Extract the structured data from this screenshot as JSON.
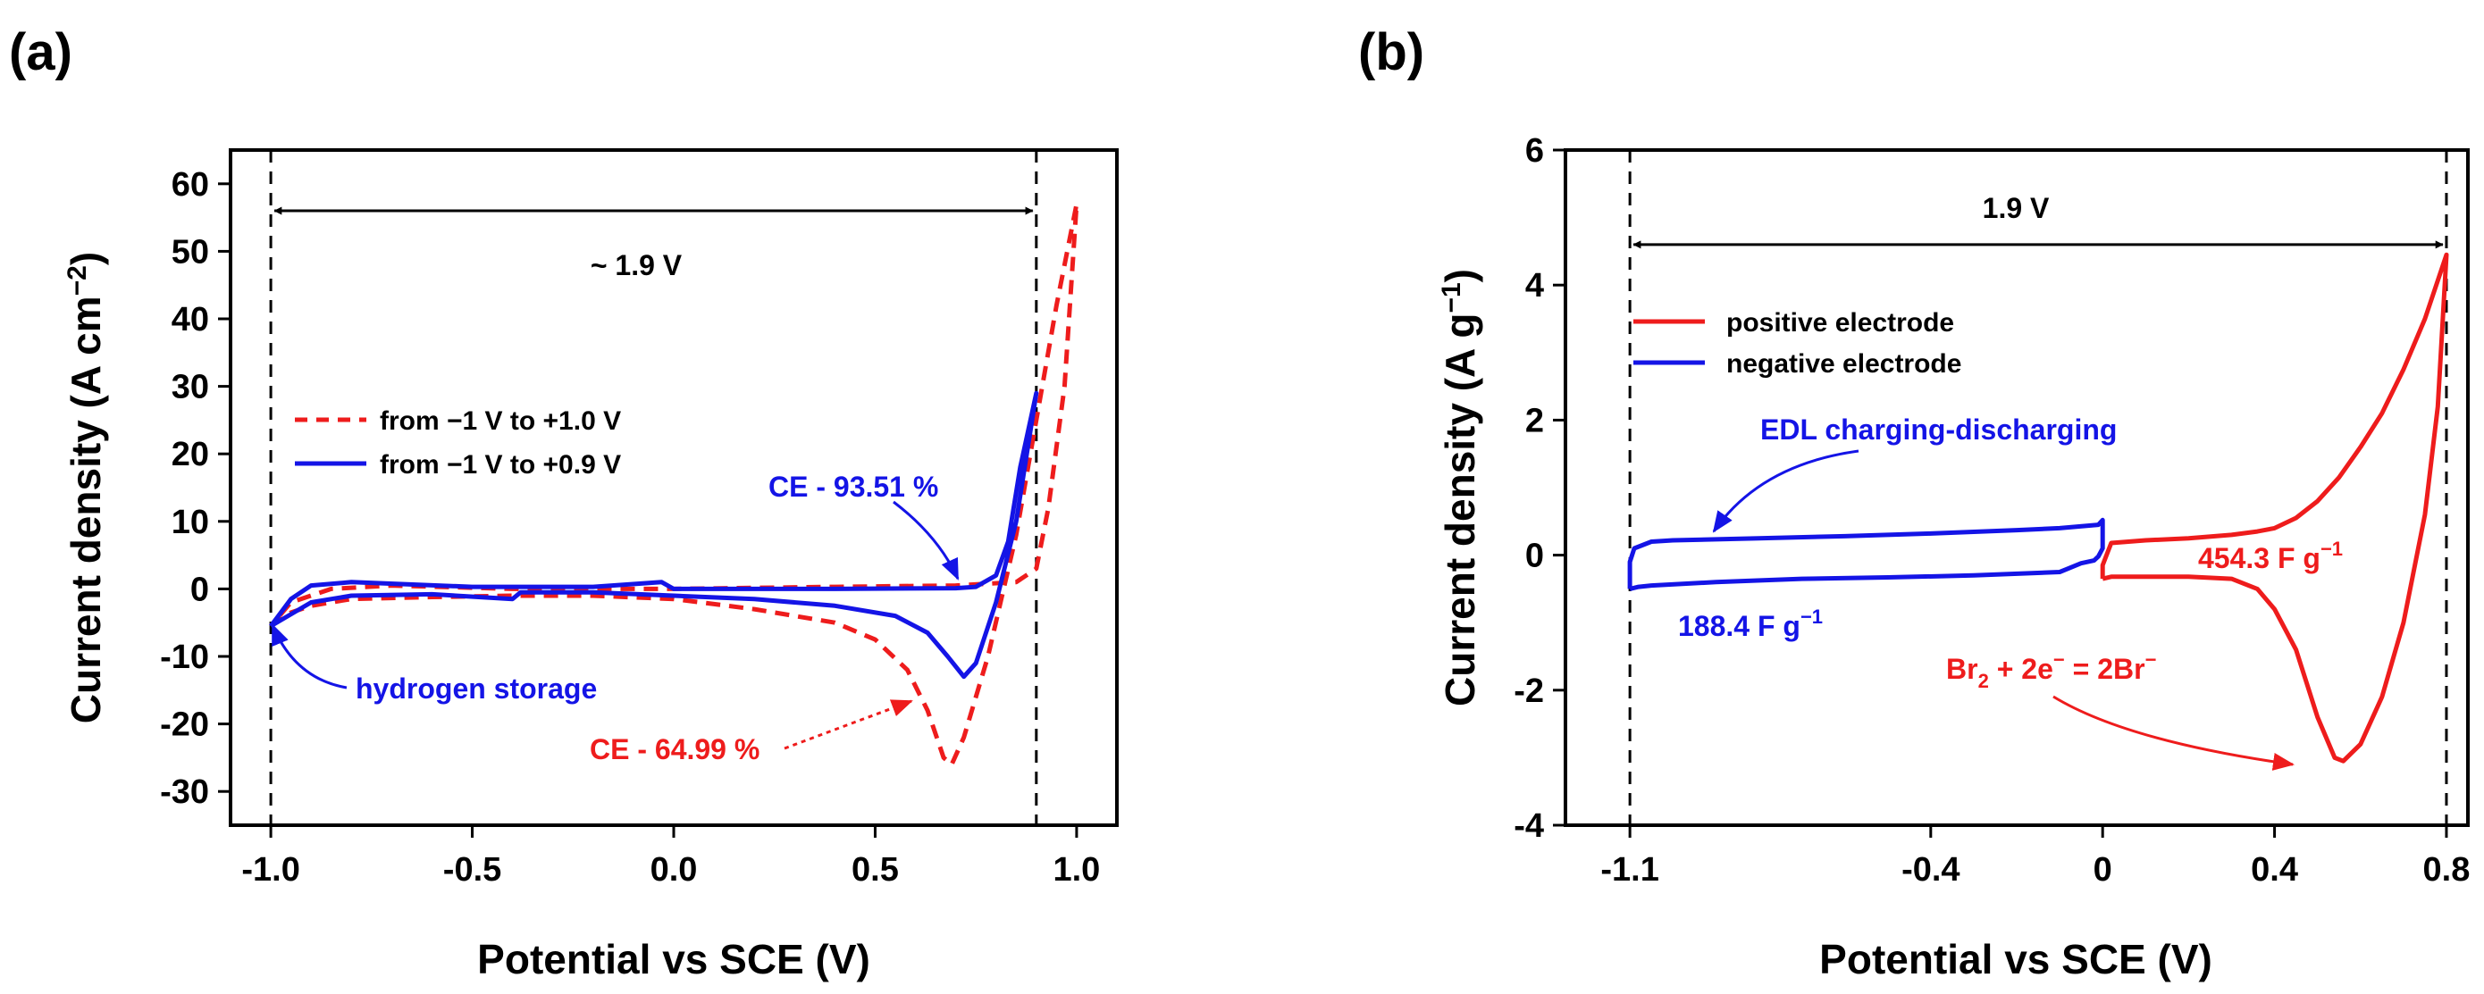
{
  "chart_data": [
    {
      "panel_label": "(a)",
      "type": "line",
      "title": "",
      "xlabel": "Potential vs SCE (V)",
      "ylabel": "Current density (A cm",
      "ylabel_sup": "−2",
      "ylabel_tail": ")",
      "xlim": [
        -1.1,
        1.1
      ],
      "ylim": [
        -35,
        65
      ],
      "xticks": [
        -1.0,
        -0.5,
        0.0,
        0.5,
        1.0
      ],
      "xtick_labels": [
        "-1.0",
        "-0.5",
        "0.0",
        "0.5",
        "1.0"
      ],
      "yticks": [
        -30,
        -20,
        -10,
        0,
        10,
        20,
        30,
        40,
        50,
        60
      ],
      "ytick_labels": [
        "-30",
        "-20",
        "-10",
        "0",
        "10",
        "20",
        "30",
        "40",
        "50",
        "60"
      ],
      "vlines": [
        -1.0,
        0.9
      ],
      "span": {
        "from": -1.0,
        "to": 0.9,
        "y": 56,
        "label": "~ 1.9 V"
      },
      "legend": {
        "position": "upper-left",
        "entries": [
          {
            "label": "from −1 V to +1.0 V",
            "color": "#ee1c1c",
            "dash": true
          },
          {
            "label": "from −1 V to +0.9 V",
            "color": "#1414e6",
            "dash": false
          }
        ]
      },
      "series": [
        {
          "name": "from −1 V to +1.0 V",
          "color": "#ee1c1c",
          "dash": true,
          "x": [
            -1.0,
            -0.95,
            -0.9,
            -0.8,
            -0.6,
            -0.4,
            -0.2,
            0.0,
            0.2,
            0.4,
            0.5,
            0.58,
            0.63,
            0.67,
            0.69,
            0.72,
            0.78,
            0.85,
            0.9,
            0.95,
            1.0,
            0.97,
            0.93,
            0.9,
            0.85,
            0.7,
            0.4,
            0.0,
            -0.4,
            -0.7,
            -0.85,
            -0.95,
            -1.0
          ],
          "y": [
            -5.5,
            -3.5,
            -2.5,
            -1.5,
            -1.2,
            -1.0,
            -1.0,
            -1.5,
            -3,
            -5,
            -7.5,
            -12,
            -18,
            -25,
            -26,
            -22,
            -10,
            8,
            25,
            42,
            57,
            30,
            12,
            3,
            1,
            0.5,
            0.3,
            0,
            0,
            0.5,
            0,
            -2,
            -5.5
          ]
        },
        {
          "name": "from −1 V to +0.9 V",
          "color": "#1414e6",
          "dash": false,
          "x": [
            -1.0,
            -0.9,
            -0.8,
            -0.6,
            -0.4,
            -0.38,
            -0.2,
            0.0,
            0.2,
            0.4,
            0.55,
            0.63,
            0.68,
            0.72,
            0.75,
            0.8,
            0.85,
            0.9,
            0.86,
            0.83,
            0.8,
            0.75,
            0.7,
            0.4,
            0.0,
            -0.03,
            -0.2,
            -0.5,
            -0.8,
            -0.9,
            -0.95,
            -1.0
          ],
          "y": [
            -5.5,
            -2,
            -1,
            -0.8,
            -1.5,
            -0.5,
            -0.5,
            -1,
            -1.5,
            -2.5,
            -4,
            -6.5,
            -10,
            -13,
            -11,
            -2,
            10,
            29,
            18,
            7,
            2,
            0.3,
            0.1,
            0,
            0,
            1,
            0.3,
            0.3,
            1,
            0.5,
            -1.5,
            -5.5
          ]
        }
      ],
      "annotations": [
        {
          "text": "CE - 93.51 %",
          "color": "#1414e6",
          "point": [
            0.73,
            1.0
          ]
        },
        {
          "text": "hydrogen storage",
          "color": "#1414e6",
          "point": [
            -0.99,
            -5.5
          ]
        },
        {
          "text": "CE - 64.99 %",
          "color": "#ee1c1c",
          "point": [
            0.61,
            -16.5
          ]
        }
      ]
    },
    {
      "panel_label": "(b)",
      "type": "line",
      "title": "",
      "xlabel": "Potential vs SCE (V)",
      "ylabel": "Current density (A g",
      "ylabel_sup": "−1",
      "ylabel_tail": ")",
      "xlim": [
        -1.25,
        0.85
      ],
      "ylim": [
        -4,
        6
      ],
      "xticks": [
        -1.1,
        -0.4,
        0,
        0.4,
        0.8
      ],
      "xtick_labels": [
        "-1.1",
        "-0.4",
        "0",
        "0.4",
        "0.8"
      ],
      "yticks": [
        -4,
        -2,
        0,
        2,
        4,
        6
      ],
      "ytick_labels": [
        "-4",
        "-2",
        "0",
        "2",
        "4",
        "6"
      ],
      "vlines": [
        -1.1,
        0.8
      ],
      "span": {
        "from": -1.1,
        "to": 0.8,
        "y": 4.6,
        "label": "1.9 V"
      },
      "legend": {
        "position": "upper-left",
        "entries": [
          {
            "label": "positive electrode",
            "color": "#ee1c1c",
            "dash": false
          },
          {
            "label": "negative electrode",
            "color": "#1414e6",
            "dash": false
          }
        ]
      },
      "series": [
        {
          "name": "positive electrode",
          "color": "#ee1c1c",
          "dash": false,
          "x": [
            0.0,
            0.0,
            0.02,
            0.1,
            0.2,
            0.3,
            0.36,
            0.4,
            0.45,
            0.5,
            0.55,
            0.6,
            0.65,
            0.7,
            0.75,
            0.8,
            0.78,
            0.75,
            0.7,
            0.65,
            0.6,
            0.56,
            0.54,
            0.5,
            0.45,
            0.4,
            0.36,
            0.3,
            0.2,
            0.1,
            0.02,
            0.0
          ],
          "y": [
            -0.35,
            -0.15,
            0.18,
            0.22,
            0.25,
            0.3,
            0.35,
            0.4,
            0.55,
            0.8,
            1.15,
            1.6,
            2.1,
            2.75,
            3.5,
            4.45,
            2.2,
            0.6,
            -1.0,
            -2.1,
            -2.8,
            -3.05,
            -3.0,
            -2.4,
            -1.4,
            -0.8,
            -0.5,
            -0.35,
            -0.32,
            -0.32,
            -0.32,
            -0.35
          ]
        },
        {
          "name": "negative electrode",
          "color": "#1414e6",
          "dash": false,
          "x": [
            -1.1,
            -1.1,
            -1.09,
            -1.05,
            -1.0,
            -0.8,
            -0.6,
            -0.4,
            -0.2,
            -0.1,
            -0.01,
            0.0,
            0.0,
            -0.01,
            -0.02,
            -0.05,
            -0.1,
            -0.3,
            -0.5,
            -0.7,
            -0.9,
            -1.05,
            -1.08,
            -1.1
          ],
          "y": [
            -0.5,
            -0.1,
            0.1,
            0.2,
            0.22,
            0.25,
            0.28,
            0.32,
            0.37,
            0.4,
            0.45,
            0.52,
            0.1,
            -0.02,
            -0.08,
            -0.12,
            -0.25,
            -0.3,
            -0.33,
            -0.35,
            -0.4,
            -0.45,
            -0.47,
            -0.5
          ]
        }
      ],
      "annotations": [
        {
          "text": "EDL charging-discharging",
          "color": "#1414e6",
          "point": [
            -1.02,
            0.35
          ]
        },
        {
          "text": "188.4 F g",
          "sup": "−1",
          "color": "#1414e6"
        },
        {
          "text": "454.3 F g",
          "sup": "−1",
          "color": "#ee1c1c"
        },
        {
          "text": "Br",
          "sub": "2",
          "text2": " + 2e",
          "sup": "−",
          "text3": " = 2Br",
          "sup2": "−",
          "color": "#ee1c1c",
          "point": [
            0.53,
            -3.05
          ]
        }
      ]
    }
  ]
}
